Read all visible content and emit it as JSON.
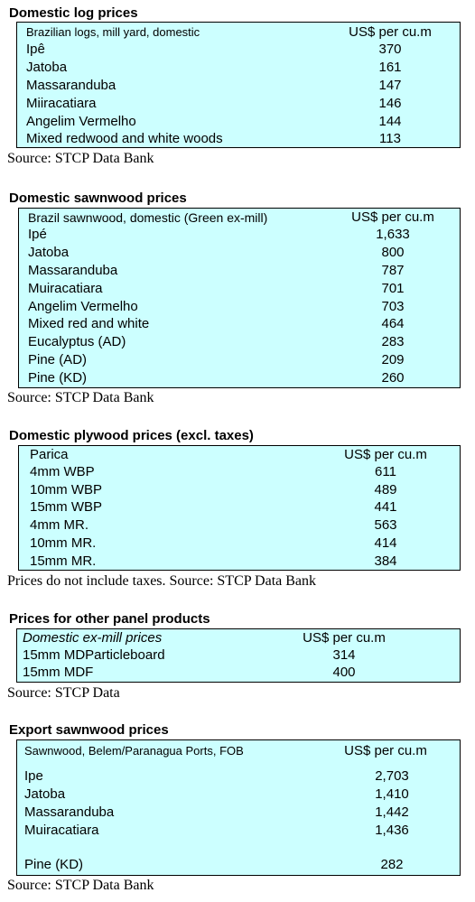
{
  "sections": [
    {
      "title": "Domestic log prices",
      "header": {
        "name": "Brazilian logs, mill yard, domestic",
        "value": "US$ per cu.m"
      },
      "rows": [
        {
          "name": "Ipê",
          "value": "370"
        },
        {
          "name": "Jatoba",
          "value": "161"
        },
        {
          "name": "Massaranduba",
          "value": "147"
        },
        {
          "name": "Miiracatiara",
          "value": "146"
        },
        {
          "name": "Angelim Vermelho",
          "value": "144"
        },
        {
          "name": "Mixed redwood and white woods",
          "value": "113"
        }
      ],
      "source": "Source: STCP Data Bank"
    },
    {
      "title": "Domestic sawnwood prices",
      "header": {
        "name": "Brazil sawnwood, domestic (Green ex-mill)",
        "value": "US$ per cu.m"
      },
      "rows": [
        {
          "name": "Ipé",
          "value": "1,633"
        },
        {
          "name": "Jatoba",
          "value": "800"
        },
        {
          "name": "Massaranduba",
          "value": "787"
        },
        {
          "name": "Muiracatiara",
          "value": "701"
        },
        {
          "name": "Angelim Vermelho",
          "value": "703"
        },
        {
          "name": "Mixed red and white",
          "value": "464"
        },
        {
          "name": "Eucalyptus (AD)",
          "value": "283"
        },
        {
          "name": "Pine (AD)",
          "value": "209"
        },
        {
          "name": "Pine (KD)",
          "value": "260"
        }
      ],
      "source": "Source: STCP Data Bank"
    },
    {
      "title": "Domestic plywood prices (excl. taxes)",
      "header": {
        "name": "Parica",
        "value": "US$ per cu.m"
      },
      "rows": [
        {
          "name": "4mm WBP",
          "value": "611"
        },
        {
          "name": "10mm WBP",
          "value": "489"
        },
        {
          "name": "15mm WBP",
          "value": "441"
        },
        {
          "name": "4mm MR.",
          "value": "563"
        },
        {
          "name": "10mm MR.",
          "value": "414"
        },
        {
          "name": "15mm MR.",
          "value": "384"
        }
      ],
      "source": "Prices do not include taxes. Source: STCP Data Bank"
    },
    {
      "title": "Prices for other panel products",
      "header": {
        "name": "Domestic ex-mill prices",
        "value": "US$ per cu.m"
      },
      "rows": [
        {
          "name": "15mm MDParticleboard",
          "value": "314"
        },
        {
          "name": "15mm MDF",
          "value": "400"
        }
      ],
      "source": "Source: STCP Data"
    },
    {
      "title": "Export sawnwood prices",
      "header": {
        "name": "Sawnwood, Belem/Paranagua Ports, FOB",
        "value": "US$ per cu.m"
      },
      "rows": [
        {
          "name": "Ipe",
          "value": "2,703"
        },
        {
          "name": "Jatoba",
          "value": "1,410"
        },
        {
          "name": "Massaranduba",
          "value": "1,442"
        },
        {
          "name": "Muiracatiara",
          "value": "1,436"
        },
        {
          "name": "Pine (KD)",
          "value": "282"
        }
      ],
      "source": "Source: STCP Data Bank"
    }
  ]
}
